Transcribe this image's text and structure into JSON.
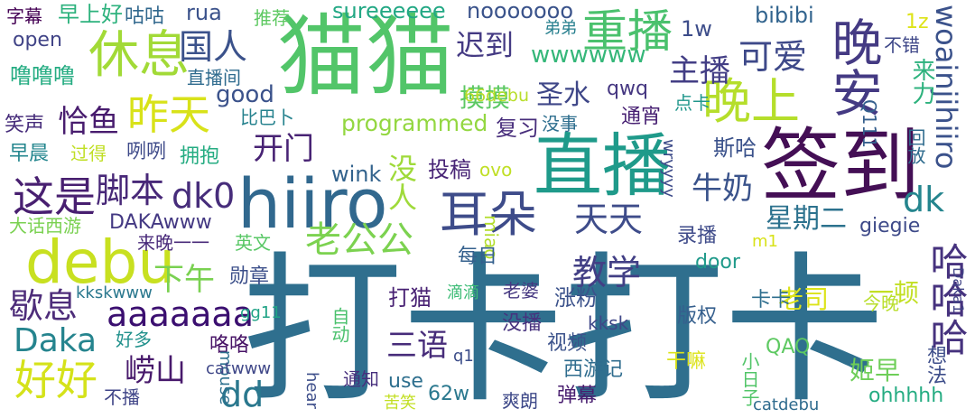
{
  "words": [
    {
      "text": "打卡打卡",
      "color": "#2f6f8e"
    },
    {
      "text": "猫猫",
      "color": "#52c569"
    },
    {
      "text": "签到",
      "color": "#440f55"
    },
    {
      "text": "直播",
      "color": "#1f9a8a"
    },
    {
      "text": "hiiro",
      "color": "#31688e"
    },
    {
      "text": "debu",
      "color": "#c8e020"
    },
    {
      "text": "晚安",
      "color": "#443a83"
    },
    {
      "text": "耳朵",
      "color": "#3e4c8a"
    },
    {
      "text": "休息",
      "color": "#a2da37"
    },
    {
      "text": "重播",
      "color": "#4ac16d"
    },
    {
      "text": "晚上",
      "color": "#b5de2b"
    },
    {
      "text": "woainjihiiro",
      "color": "#3b528b"
    },
    {
      "text": "昨天",
      "color": "#d8e219"
    },
    {
      "text": "这是",
      "color": "#481f70"
    },
    {
      "text": "好好",
      "color": "#d5e21a"
    },
    {
      "text": "老公公",
      "color": "#7cd250"
    },
    {
      "text": "国人",
      "color": "#3b528b"
    },
    {
      "text": "可爱",
      "color": "#3e4989"
    },
    {
      "text": "迟到",
      "color": "#443a83"
    },
    {
      "text": "哈哈哈",
      "color": "#46327e"
    },
    {
      "text": "aaaaaaa",
      "color": "#3b0f70"
    },
    {
      "text": "dd",
      "color": "#2a788e"
    },
    {
      "text": "dk0",
      "color": "#472d7b"
    },
    {
      "text": "dk",
      "color": "#25858e"
    },
    {
      "text": "Daka",
      "color": "#25848e"
    },
    {
      "text": "歇息",
      "color": "#4e2d7a"
    },
    {
      "text": "脚本",
      "color": "#482878"
    },
    {
      "text": "天天",
      "color": "#3e4c8a"
    },
    {
      "text": "教学",
      "color": "#423f85"
    },
    {
      "text": "主播",
      "color": "#433e85"
    },
    {
      "text": "牛奶",
      "color": "#3a538b"
    },
    {
      "text": "开门",
      "color": "#482374"
    },
    {
      "text": "三语",
      "color": "#472c7a"
    },
    {
      "text": "崂山",
      "color": "#481a6c"
    },
    {
      "text": "恰鱼",
      "color": "#481c6e"
    },
    {
      "text": "没人",
      "color": "#9fda3a"
    },
    {
      "text": "星期二",
      "color": "#2c728e"
    },
    {
      "text": "圣水",
      "color": "#3f4788"
    },
    {
      "text": "下午",
      "color": "#7ad151"
    },
    {
      "text": "摸摸",
      "color": "#5cc863"
    },
    {
      "text": "来力",
      "color": "#2db27d"
    },
    {
      "text": "一顿",
      "color": "#c2df23"
    },
    {
      "text": "老司",
      "color": "#dce319"
    },
    {
      "text": "姬早",
      "color": "#6ece58"
    },
    {
      "text": "想法",
      "color": "#3d4d8a"
    },
    {
      "text": "programmed",
      "color": "#93d741"
    },
    {
      "text": "wwwwww",
      "color": "#35b779"
    },
    {
      "text": "sureeeeee",
      "color": "#22a884"
    },
    {
      "text": "nooooooo",
      "color": "#3a538b"
    },
    {
      "text": "bibibi",
      "color": "#32648e"
    },
    {
      "text": "1w",
      "color": "#3d4d8a"
    },
    {
      "text": "1z",
      "color": "#dde318"
    },
    {
      "text": "不错",
      "color": "#3f4889"
    },
    {
      "text": "Q111",
      "color": "#355f8d"
    },
    {
      "text": "回放",
      "color": "#2f6c8e"
    },
    {
      "text": "字幕",
      "color": "#440154"
    },
    {
      "text": "早上好",
      "color": "#2db27d"
    },
    {
      "text": "咕咕",
      "color": "#31688e"
    },
    {
      "text": "rua",
      "color": "#3b528b"
    },
    {
      "text": "推荐",
      "color": "#5ec962"
    },
    {
      "text": "open",
      "color": "#414487"
    },
    {
      "text": "弟弟",
      "color": "#277f8e"
    },
    {
      "text": "噜噜噜",
      "color": "#25ac82"
    },
    {
      "text": "直播间",
      "color": "#2f6b8e"
    },
    {
      "text": "good",
      "color": "#3b528b"
    },
    {
      "text": "66debu",
      "color": "#b8de29"
    },
    {
      "text": "qwq",
      "color": "#453781"
    },
    {
      "text": "点卡",
      "color": "#1f968b"
    },
    {
      "text": "笑声",
      "color": "#472d7b"
    },
    {
      "text": "比巴卜",
      "color": "#26828e"
    },
    {
      "text": "复习",
      "color": "#472d7b"
    },
    {
      "text": "没事",
      "color": "#2e6e8e"
    },
    {
      "text": "通宵",
      "color": "#482173"
    },
    {
      "text": "早晨",
      "color": "#24868e"
    },
    {
      "text": "过得",
      "color": "#c0df25"
    },
    {
      "text": "咧咧",
      "color": "#3e4a89"
    },
    {
      "text": "拥抱",
      "color": "#25ac82"
    },
    {
      "text": "斯哈",
      "color": "#3b528b"
    },
    {
      "text": "wink",
      "color": "#33638d"
    },
    {
      "text": "投稿",
      "color": "#482576"
    },
    {
      "text": "ovo",
      "color": "#c0df25"
    },
    {
      "text": "wryyyy",
      "color": "#3e4c8a"
    },
    {
      "text": "大话西游",
      "color": "#7ad151"
    },
    {
      "text": "DAKAwww",
      "color": "#443983"
    },
    {
      "text": "giegie",
      "color": "#3e4a89"
    },
    {
      "text": "Daka1",
      "color": "#414487"
    },
    {
      "text": "来晚一一",
      "color": "#482979"
    },
    {
      "text": "英文",
      "color": "#58c765"
    },
    {
      "text": "miao",
      "color": "#b2dd2d"
    },
    {
      "text": "录播",
      "color": "#3e4a89"
    },
    {
      "text": "m1",
      "color": "#d8e219"
    },
    {
      "text": "每日",
      "color": "#34608d"
    },
    {
      "text": "door",
      "color": "#1f9a8a"
    },
    {
      "text": "勋章",
      "color": "#3c4f8a"
    },
    {
      "text": "老婆",
      "color": "#453781"
    },
    {
      "text": "kkskwww",
      "color": "#2a788e"
    },
    {
      "text": "打猫",
      "color": "#482173"
    },
    {
      "text": "涨粉",
      "color": "#3b528b"
    },
    {
      "text": "滴滴",
      "color": "#3bbb75"
    },
    {
      "text": "卡卡",
      "color": "#2e6e8e"
    },
    {
      "text": "版权",
      "color": "#355f8d"
    },
    {
      "text": "今晚",
      "color": "#b8de29"
    },
    {
      "text": "gg11",
      "color": "#20a386"
    },
    {
      "text": "没播",
      "color": "#46327e"
    },
    {
      "text": "kksk",
      "color": "#3f4788"
    },
    {
      "text": "好多",
      "color": "#21918c"
    },
    {
      "text": "自动",
      "color": "#4ac16d"
    },
    {
      "text": "咯咯",
      "color": "#481467"
    },
    {
      "text": "视频",
      "color": "#3b528b"
    },
    {
      "text": "QAQ",
      "color": "#5ec962"
    },
    {
      "text": "q1",
      "color": "#3d4e8a"
    },
    {
      "text": "mouse",
      "color": "#2d708e"
    },
    {
      "text": "catwww",
      "color": "#3f4788"
    },
    {
      "text": "西游记",
      "color": "#2f6c8e"
    },
    {
      "text": "小日子",
      "color": "#52c569"
    },
    {
      "text": "干嘛",
      "color": "#dce319"
    },
    {
      "text": "hear",
      "color": "#3d4e8a"
    },
    {
      "text": "use",
      "color": "#2e6f8e"
    },
    {
      "text": "通知",
      "color": "#472f7d"
    },
    {
      "text": "不播",
      "color": "#404588"
    },
    {
      "text": "62w",
      "color": "#2a788e"
    },
    {
      "text": "弹幕",
      "color": "#481d6f"
    },
    {
      "text": "苦笑",
      "color": "#c2df23"
    },
    {
      "text": "爽朗",
      "color": "#3e4989"
    },
    {
      "text": "catdebu",
      "color": "#2f6b8e"
    },
    {
      "text": "ohhhhh",
      "color": "#25ac82"
    }
  ]
}
